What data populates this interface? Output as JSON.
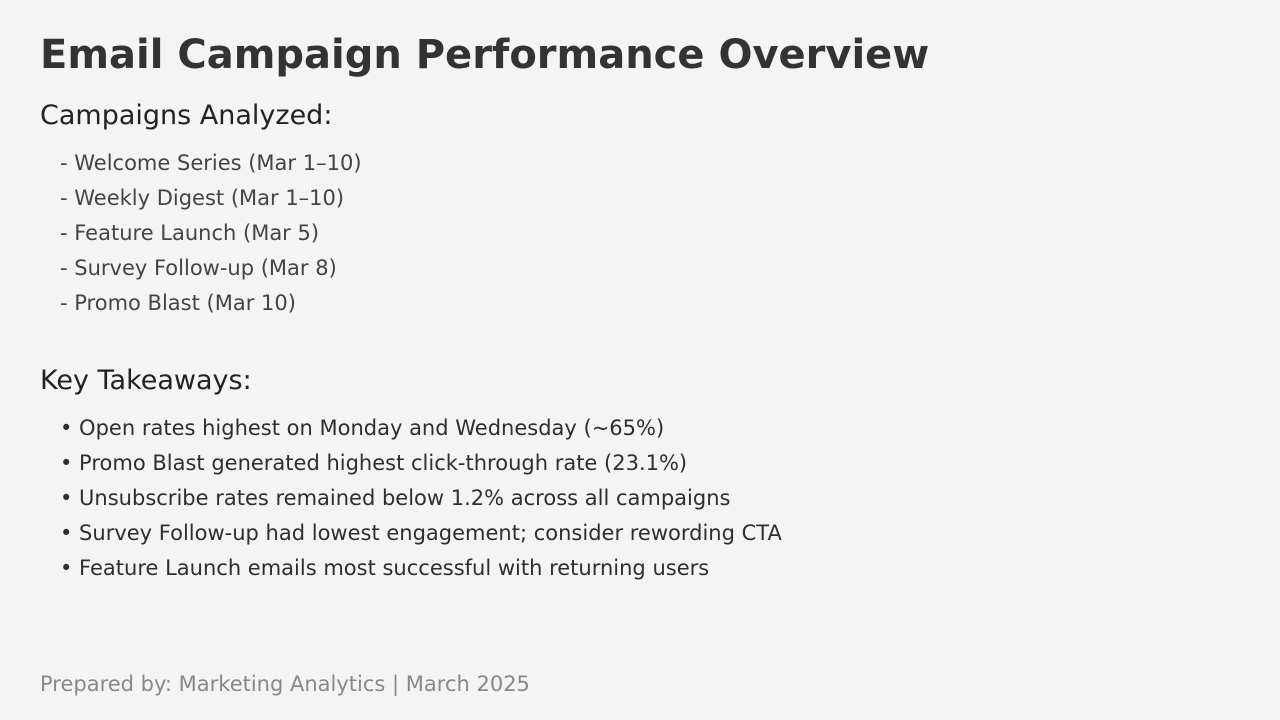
{
  "title": "Email Campaign Performance Overview",
  "campaigns": {
    "heading": "Campaigns Analyzed:",
    "items": [
      "- Welcome Series (Mar 1–10)",
      "- Weekly Digest (Mar 1–10)",
      "- Feature Launch (Mar 5)",
      "- Survey Follow-up (Mar 8)",
      "- Promo Blast (Mar 10)"
    ]
  },
  "takeaways": {
    "heading": "Key Takeaways:",
    "items": [
      "• Open rates highest on Monday and Wednesday (~65%)",
      "• Promo Blast generated highest click-through rate (23.1%)",
      "• Unsubscribe rates remained below 1.2% across all campaigns",
      "• Survey Follow-up had lowest engagement; consider rewording CTA",
      "• Feature Launch emails most successful with returning users"
    ]
  },
  "footer": "Prepared by: Marketing Analytics | March 2025"
}
